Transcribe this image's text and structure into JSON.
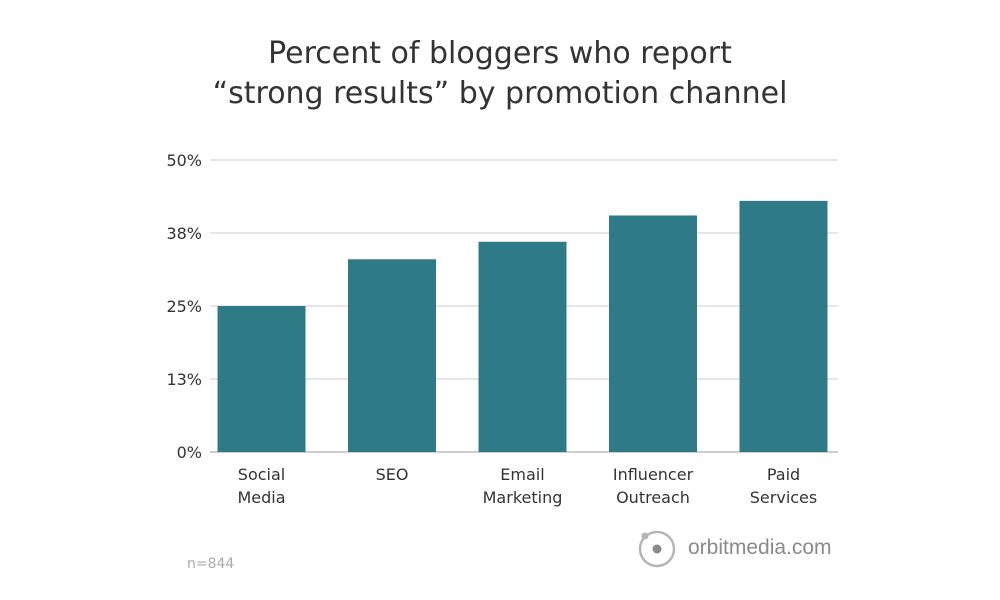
{
  "chart_data": {
    "type": "bar",
    "title_lines": [
      "Percent of bloggers who report",
      "“strong results” by promotion channel"
    ],
    "categories": [
      [
        "Social",
        "Media"
      ],
      [
        "SEO"
      ],
      [
        "Email",
        "Marketing"
      ],
      [
        "Influencer",
        "Outreach"
      ],
      [
        "Paid",
        "Services"
      ]
    ],
    "values": [
      25,
      33,
      36,
      40.5,
      43
    ],
    "yticks": [
      "0%",
      "13%",
      "25%",
      "38%",
      "50%"
    ],
    "ylim": [
      0,
      50
    ],
    "bar_color": "#2e7b87",
    "grid": true
  },
  "note": "n=844",
  "logo": {
    "text": "orbitmedia.com"
  }
}
